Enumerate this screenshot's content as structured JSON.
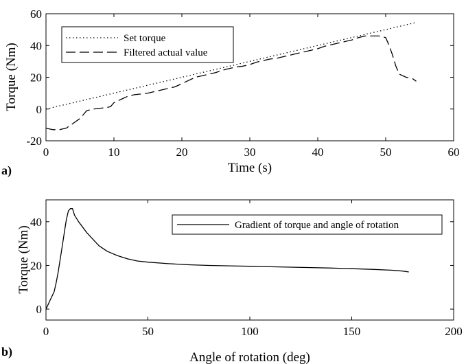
{
  "chart_data": [
    {
      "type": "line",
      "panel_label": "a)",
      "xlabel": "Time (s)",
      "ylabel": "Torque (Nm)",
      "xlim": [
        0,
        60
      ],
      "ylim": [
        -20,
        60
      ],
      "xticks": [
        "0",
        "10",
        "20",
        "30",
        "40",
        "50",
        "60"
      ],
      "yticks": [
        "-20",
        "0",
        "20",
        "40",
        "60"
      ],
      "legend_position": "top-left",
      "series": [
        {
          "name": "Set torque",
          "style": "dotted",
          "x": [
            0,
            54.5
          ],
          "y": [
            0,
            54.5
          ]
        },
        {
          "name": "Filtered actual value",
          "style": "dashed",
          "x": [
            0,
            0.5,
            1,
            2,
            3,
            4,
            5,
            6,
            7,
            8,
            9,
            9.5,
            10,
            11,
            12,
            13,
            14,
            15,
            16,
            17,
            18,
            19,
            20,
            21,
            22,
            23,
            24,
            25,
            26,
            27,
            28,
            29,
            30,
            31,
            32,
            33,
            34,
            35,
            36,
            37,
            38,
            39,
            40,
            41,
            42,
            43,
            44,
            45,
            46,
            47,
            48,
            49,
            50,
            50.5,
            51,
            51.5,
            52,
            53,
            54,
            54.5
          ],
          "y": [
            -12,
            -12.5,
            -13,
            -13,
            -12,
            -9,
            -6,
            -1,
            0,
            0.5,
            1,
            1.5,
            4,
            6,
            8,
            9,
            9.5,
            10,
            11,
            12,
            13,
            14,
            16,
            18,
            20,
            21,
            22,
            23,
            24.5,
            25.5,
            26.5,
            27,
            28,
            29.5,
            30.5,
            31.5,
            32,
            33,
            34,
            35,
            36,
            37,
            38,
            39.5,
            40.5,
            41.5,
            42.5,
            43.5,
            45,
            46,
            46,
            46,
            45,
            40,
            34,
            27,
            22,
            20,
            19,
            17.5
          ]
        }
      ]
    },
    {
      "type": "line",
      "panel_label": "b)",
      "xlabel": "Angle of rotation (deg)",
      "ylabel": "Torque (Nm)",
      "xlim": [
        0,
        200
      ],
      "ylim": [
        -5,
        50
      ],
      "xticks": [
        "0",
        "50",
        "100",
        "150",
        "200"
      ],
      "yticks": [
        "0",
        "20",
        "40"
      ],
      "legend_position": "top-right",
      "series": [
        {
          "name": "Gradient of torque and angle of rotation",
          "style": "solid",
          "x": [
            0,
            1,
            2,
            3,
            4,
            5,
            6,
            7,
            8,
            9,
            10,
            11,
            12,
            13,
            14,
            16,
            18,
            20,
            23,
            26,
            30,
            35,
            40,
            45,
            50,
            60,
            70,
            80,
            90,
            100,
            110,
            120,
            130,
            140,
            150,
            160,
            170,
            175,
            178
          ],
          "y": [
            0,
            2,
            4,
            6,
            8,
            12,
            17,
            23,
            29,
            35,
            41,
            45,
            46,
            46,
            43,
            40,
            37.5,
            35,
            32,
            29,
            26.5,
            24.5,
            23,
            22,
            21.5,
            20.8,
            20.3,
            20,
            19.8,
            19.6,
            19.4,
            19.2,
            19,
            18.8,
            18.5,
            18.2,
            17.8,
            17.4,
            17
          ]
        }
      ]
    }
  ]
}
